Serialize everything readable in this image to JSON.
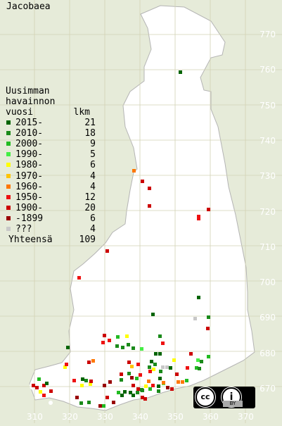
{
  "title": "Jacobaea",
  "legend": {
    "header_lines": [
      "Uusimman",
      "havainnon",
      "vuosi"
    ],
    "count_header": "lkm",
    "items": [
      {
        "label": "2015-",
        "count": "21",
        "color": "#006400"
      },
      {
        "label": "2010-",
        "count": "18",
        "color": "#1a8a1a"
      },
      {
        "label": "2000-",
        "count": "9",
        "color": "#22bb22"
      },
      {
        "label": "1990-",
        "count": "5",
        "color": "#44ee44"
      },
      {
        "label": "1980-",
        "count": "6",
        "color": "#ffff00"
      },
      {
        "label": "1970-",
        "count": "4",
        "color": "#ffc400"
      },
      {
        "label": "1960-",
        "count": "4",
        "color": "#ff7700"
      },
      {
        "label": "1950-",
        "count": "12",
        "color": "#ee1111"
      },
      {
        "label": "1900-",
        "count": "20",
        "color": "#cc0000"
      },
      {
        "label": "-1899",
        "count": "6",
        "color": "#990000"
      },
      {
        "label": "???",
        "count": "4",
        "color": "#c8c8c8"
      }
    ],
    "total_label": "Yhteensä",
    "total_count": "109"
  },
  "y_axis_labels": [
    "770",
    "760",
    "750",
    "740",
    "730",
    "720",
    "710",
    "700",
    "690",
    "680",
    "670"
  ],
  "x_axis_labels": [
    "310",
    "320",
    "330",
    "340",
    "350",
    "360",
    "370"
  ],
  "license": {
    "cc": "cc",
    "by": "BY"
  },
  "colors": {
    "background": "#e6ebd9",
    "land": "#ffffff",
    "grid": "#d2d2b4",
    "border": "#b4b4b4"
  }
}
